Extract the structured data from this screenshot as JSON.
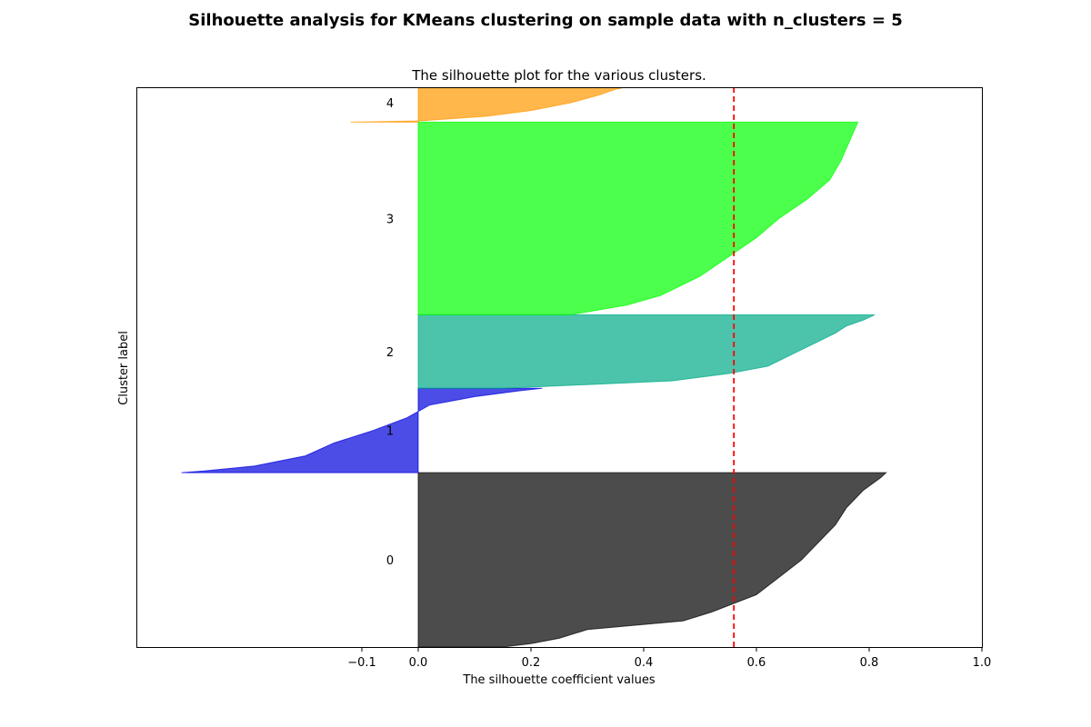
{
  "figure": {
    "suptitle": "Silhouette analysis for KMeans clustering on sample data with n_clusters = 5"
  },
  "chart_data": {
    "type": "area",
    "title": "The silhouette plot for the various clusters.",
    "xlabel": "The silhouette coefficient values",
    "ylabel": "Cluster label",
    "xlim": [
      -0.5,
      1.0
    ],
    "ylim": [
      0,
      610
    ],
    "xticks": [
      -0.1,
      0.0,
      0.2,
      0.4,
      0.6,
      0.8,
      1.0
    ],
    "xtick_labels": [
      "−0.1",
      "0.0",
      "0.2",
      "0.4",
      "0.6",
      "0.8",
      "1.0"
    ],
    "yticks": [],
    "average_silhouette_score": 0.56,
    "average_line_color": "#ff0000",
    "clusters": [
      {
        "label": "0",
        "color": "#000000",
        "y_lower": 0,
        "y_upper": 190,
        "profile": [
          [
            0.0,
            0.15
          ],
          [
            0.02,
            0.2
          ],
          [
            0.05,
            0.25
          ],
          [
            0.1,
            0.3
          ],
          [
            0.15,
            0.47
          ],
          [
            0.2,
            0.52
          ],
          [
            0.3,
            0.6
          ],
          [
            0.4,
            0.64
          ],
          [
            0.5,
            0.68
          ],
          [
            0.6,
            0.71
          ],
          [
            0.7,
            0.74
          ],
          [
            0.8,
            0.76
          ],
          [
            0.9,
            0.79
          ],
          [
            0.97,
            0.82
          ],
          [
            1.0,
            0.83
          ]
        ]
      },
      {
        "label": "1",
        "color": "#0000dd",
        "y_lower": 190,
        "y_upper": 282,
        "profile": [
          [
            0.0,
            -0.42
          ],
          [
            0.02,
            -0.38
          ],
          [
            0.08,
            -0.29
          ],
          [
            0.2,
            -0.2
          ],
          [
            0.35,
            -0.15
          ],
          [
            0.5,
            -0.08
          ],
          [
            0.65,
            -0.02
          ],
          [
            0.8,
            0.02
          ],
          [
            0.9,
            0.1
          ],
          [
            0.97,
            0.18
          ],
          [
            1.0,
            0.22
          ]
        ]
      },
      {
        "label": "2",
        "color": "#00aa88",
        "y_lower": 282,
        "y_upper": 362,
        "profile": [
          [
            0.0,
            0.15
          ],
          [
            0.05,
            0.3
          ],
          [
            0.1,
            0.45
          ],
          [
            0.2,
            0.55
          ],
          [
            0.3,
            0.62
          ],
          [
            0.45,
            0.66
          ],
          [
            0.6,
            0.7
          ],
          [
            0.75,
            0.74
          ],
          [
            0.85,
            0.76
          ],
          [
            0.93,
            0.79
          ],
          [
            1.0,
            0.81
          ]
        ]
      },
      {
        "label": "3",
        "color": "#00ff00",
        "y_lower": 362,
        "y_upper": 572,
        "profile": [
          [
            0.0,
            0.27
          ],
          [
            0.05,
            0.37
          ],
          [
            0.1,
            0.43
          ],
          [
            0.2,
            0.5
          ],
          [
            0.3,
            0.55
          ],
          [
            0.4,
            0.6
          ],
          [
            0.5,
            0.64
          ],
          [
            0.6,
            0.69
          ],
          [
            0.7,
            0.73
          ],
          [
            0.8,
            0.75
          ],
          [
            0.9,
            0.765
          ],
          [
            1.0,
            0.78
          ]
        ]
      },
      {
        "label": "4",
        "color": "#ff9900",
        "y_lower": 572,
        "y_upper": 614,
        "profile": [
          [
            0.0,
            -0.12
          ],
          [
            0.03,
            0.0
          ],
          [
            0.15,
            0.12
          ],
          [
            0.3,
            0.2
          ],
          [
            0.5,
            0.27
          ],
          [
            0.7,
            0.32
          ],
          [
            0.85,
            0.35
          ],
          [
            1.0,
            0.4
          ]
        ]
      }
    ]
  }
}
